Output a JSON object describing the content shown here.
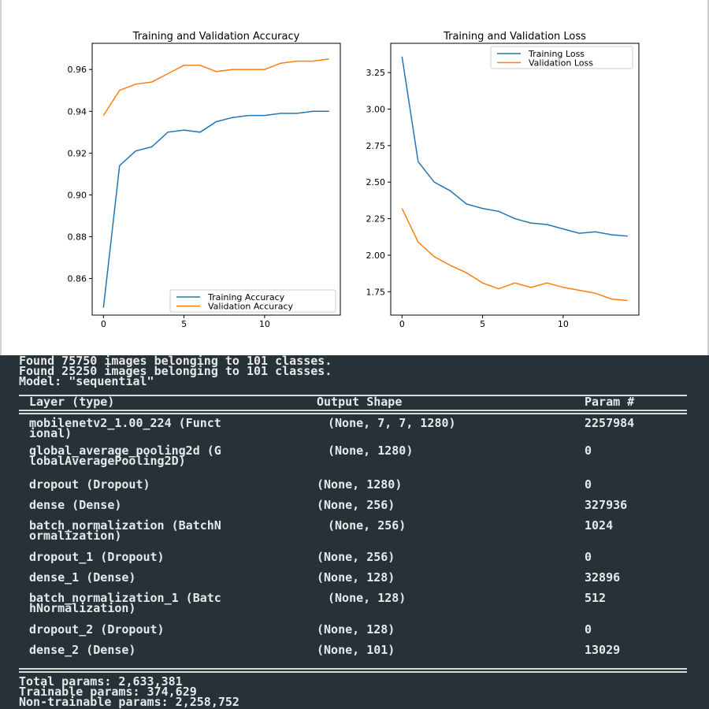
{
  "colors": {
    "series_blue": "#1f77b4",
    "series_orange": "#ff7f0e",
    "console_bg": "#263238",
    "console_text": "#e6e9ea"
  },
  "chart_data": [
    {
      "type": "line",
      "title": "Training and Validation Accuracy",
      "x": [
        0,
        1,
        2,
        3,
        4,
        5,
        6,
        7,
        8,
        9,
        10,
        11,
        12,
        13,
        14
      ],
      "xticks": [
        "0",
        "5",
        "10"
      ],
      "yticks": [
        "0.86",
        "0.88",
        "0.90",
        "0.92",
        "0.94",
        "0.96"
      ],
      "ylim": [
        0.8425,
        0.9725
      ],
      "xlim": [
        -0.7,
        14.7
      ],
      "legend_position": "lower-right",
      "series": [
        {
          "name": "Training Accuracy",
          "color": "#1f77b4",
          "values": [
            0.846,
            0.914,
            0.921,
            0.923,
            0.93,
            0.931,
            0.93,
            0.935,
            0.937,
            0.938,
            0.938,
            0.939,
            0.939,
            0.94,
            0.94
          ]
        },
        {
          "name": "Validation Accuracy",
          "color": "#ff7f0e",
          "values": [
            0.938,
            0.95,
            0.953,
            0.954,
            0.958,
            0.962,
            0.962,
            0.959,
            0.96,
            0.96,
            0.96,
            0.963,
            0.964,
            0.964,
            0.965
          ]
        }
      ]
    },
    {
      "type": "line",
      "title": "Training and Validation Loss",
      "x": [
        0,
        1,
        2,
        3,
        4,
        5,
        6,
        7,
        8,
        9,
        10,
        11,
        12,
        13,
        14
      ],
      "xticks": [
        "0",
        "5",
        "10"
      ],
      "yticks": [
        "1.75",
        "2.00",
        "2.25",
        "2.50",
        "2.75",
        "3.00",
        "3.25"
      ],
      "ylim": [
        1.59,
        3.45
      ],
      "xlim": [
        -0.7,
        14.7
      ],
      "legend_position": "top-right",
      "series": [
        {
          "name": "Training Loss",
          "color": "#1f77b4",
          "values": [
            3.36,
            2.64,
            2.5,
            2.44,
            2.35,
            2.32,
            2.3,
            2.25,
            2.22,
            2.21,
            2.18,
            2.15,
            2.16,
            2.14,
            2.13
          ]
        },
        {
          "name": "Validation Loss",
          "color": "#ff7f0e",
          "values": [
            2.32,
            2.09,
            1.99,
            1.93,
            1.88,
            1.81,
            1.77,
            1.81,
            1.78,
            1.81,
            1.78,
            1.76,
            1.74,
            1.7,
            1.69
          ]
        }
      ]
    }
  ],
  "console": {
    "found_lines": [
      "Found 75750 images belonging to 101 classes.",
      "Found 25250 images belonging to 101 classes."
    ],
    "model_line": "Model: \"sequential\"",
    "headers": {
      "layer": "Layer (type)",
      "output": "Output Shape",
      "param": "Param #"
    },
    "rows": [
      {
        "layer": "mobilenetv2_1.00_224 (Funct\nional)",
        "output": "(None, 7, 7, 1280)",
        "param": "2257984"
      },
      {
        "layer": "global_average_pooling2d (G\nlobalAveragePooling2D)",
        "output": "(None, 1280)",
        "param": "0"
      },
      {
        "layer": "dropout (Dropout)",
        "output": "(None, 1280)",
        "param": "0"
      },
      {
        "layer": "dense (Dense)",
        "output": "(None, 256)",
        "param": "327936"
      },
      {
        "layer": "batch_normalization (BatchN\normalization)",
        "output": "(None, 256)",
        "param": "1024"
      },
      {
        "layer": "dropout_1 (Dropout)",
        "output": "(None, 256)",
        "param": "0"
      },
      {
        "layer": "dense_1 (Dense)",
        "output": "(None, 128)",
        "param": "32896"
      },
      {
        "layer": "batch_normalization_1 (Batc\nhNormalization)",
        "output": "(None, 128)",
        "param": "512"
      },
      {
        "layer": "dropout_2 (Dropout)",
        "output": "(None, 128)",
        "param": "0"
      },
      {
        "layer": "dense_2 (Dense)",
        "output": "(None, 101)",
        "param": "13029"
      }
    ],
    "totals": [
      "Total params: 2,633,381",
      "Trainable params: 374,629",
      "Non-trainable params: 2,258,752"
    ]
  }
}
